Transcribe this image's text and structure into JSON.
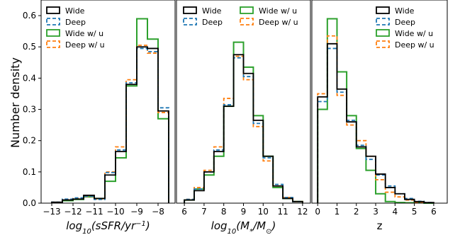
{
  "ylabel": "Number density",
  "colors": {
    "Wide": "#000000",
    "Deep": "#1f77b4",
    "Wide w/ u": "#2ca02c",
    "Deep w/ u": "#ff7f0e"
  },
  "chart_data": [
    {
      "type": "histogram",
      "xlabel_html": "log<tspan baseline-shift='sub' font-size='10'>10</tspan>(sSFR/yr<tspan baseline-shift='super' font-size='10'>−1</tspan>)",
      "xlabel": "log10(sSFR/yr−1)",
      "xlim": [
        -13.5,
        -7.2
      ],
      "ylim": [
        0,
        0.65
      ],
      "xticks": [
        -13,
        -12,
        -11,
        -10,
        -9,
        -8
      ],
      "xtick_labels": [
        "−13",
        "−12",
        "−11",
        "−10",
        "−9",
        "−8"
      ],
      "yticks": [
        0.0,
        0.1,
        0.2,
        0.3,
        0.4,
        0.5,
        0.6
      ],
      "ytick_labels": [
        "0.0",
        "0.1",
        "0.2",
        "0.3",
        "0.4",
        "0.5",
        "0.6"
      ],
      "bins": [
        -13.0,
        -12.5,
        -12.0,
        -11.5,
        -11.0,
        -10.5,
        -10.0,
        -9.5,
        -9.0,
        -8.5,
        -8.0,
        -7.5
      ],
      "legend_loc": "upper-left",
      "series": [
        {
          "name": "Wide",
          "values": [
            0.003,
            0.01,
            0.013,
            0.025,
            0.015,
            0.09,
            0.165,
            0.38,
            0.5,
            0.495,
            0.295
          ]
        },
        {
          "name": "Deep",
          "values": [
            0.003,
            0.013,
            0.017,
            0.022,
            0.012,
            0.098,
            0.17,
            0.385,
            0.495,
            0.485,
            0.305
          ]
        },
        {
          "name": "Wide w/ u",
          "values": [
            0.002,
            0.008,
            0.012,
            0.02,
            0.015,
            0.07,
            0.145,
            0.375,
            0.59,
            0.525,
            0.27
          ]
        },
        {
          "name": "Deep w/ u",
          "values": [
            0.002,
            0.011,
            0.015,
            0.021,
            0.013,
            0.1,
            0.18,
            0.395,
            0.505,
            0.48,
            0.29
          ]
        }
      ]
    },
    {
      "type": "histogram",
      "xlabel_html": "log<tspan baseline-shift='sub' font-size='10'>10</tspan>(M<tspan baseline-shift='sub' font-size='10'>*</tspan>/M<tspan baseline-shift='sub' font-size='10'>⊙</tspan>)",
      "xlabel": "log10(M*/M⊙)",
      "xlim": [
        5.6,
        12.4
      ],
      "ylim": [
        0,
        0.65
      ],
      "xticks": [
        6,
        7,
        8,
        9,
        10,
        11,
        12
      ],
      "xtick_labels": [
        "6",
        "7",
        "8",
        "9",
        "10",
        "11",
        "12"
      ],
      "yticks": [],
      "ytick_labels": [],
      "bins": [
        6.0,
        6.5,
        7.0,
        7.5,
        8.0,
        8.5,
        9.0,
        9.5,
        10.0,
        10.5,
        11.0,
        11.5,
        12.0
      ],
      "legend_loc": "top",
      "series": [
        {
          "name": "Wide",
          "values": [
            0.01,
            0.04,
            0.1,
            0.165,
            0.31,
            0.475,
            0.415,
            0.265,
            0.15,
            0.055,
            0.015,
            0.005
          ]
        },
        {
          "name": "Deep",
          "values": [
            0.012,
            0.045,
            0.1,
            0.17,
            0.315,
            0.465,
            0.405,
            0.255,
            0.145,
            0.06,
            0.018,
            0.005
          ]
        },
        {
          "name": "Wide w/ u",
          "values": [
            0.01,
            0.045,
            0.09,
            0.15,
            0.31,
            0.515,
            0.435,
            0.28,
            0.15,
            0.05,
            0.015,
            0.005
          ]
        },
        {
          "name": "Deep w/ u",
          "values": [
            0.012,
            0.05,
            0.105,
            0.18,
            0.335,
            0.47,
            0.395,
            0.245,
            0.135,
            0.055,
            0.018,
            0.005
          ]
        }
      ]
    },
    {
      "type": "histogram",
      "xlabel_html": "z",
      "xlabel": "z",
      "xlim": [
        -0.3,
        6.7
      ],
      "ylim": [
        0,
        0.65
      ],
      "xticks": [
        0,
        1,
        2,
        3,
        4,
        5,
        6
      ],
      "xtick_labels": [
        "0",
        "1",
        "2",
        "3",
        "4",
        "5",
        "6"
      ],
      "yticks": [],
      "ytick_labels": [],
      "bins": [
        0.0,
        0.5,
        1.0,
        1.5,
        2.0,
        2.5,
        3.0,
        3.5,
        4.0,
        4.5,
        5.0,
        5.5,
        6.0
      ],
      "legend_loc": "upper-right",
      "series": [
        {
          "name": "Wide",
          "values": [
            0.34,
            0.51,
            0.365,
            0.26,
            0.18,
            0.15,
            0.093,
            0.05,
            0.03,
            0.012,
            0.005,
            0.002
          ]
        },
        {
          "name": "Deep",
          "values": [
            0.325,
            0.495,
            0.355,
            0.265,
            0.185,
            0.14,
            0.09,
            0.055,
            0.03,
            0.015,
            0.006,
            0.002
          ]
        },
        {
          "name": "Wide w/ u",
          "values": [
            0.3,
            0.59,
            0.42,
            0.28,
            0.175,
            0.105,
            0.03,
            0.005,
            0.002,
            0.001,
            0.001,
            0.0
          ]
        },
        {
          "name": "Deep w/ u",
          "values": [
            0.35,
            0.535,
            0.345,
            0.25,
            0.2,
            0.15,
            0.075,
            0.035,
            0.02,
            0.01,
            0.003,
            0.001
          ]
        }
      ]
    }
  ]
}
